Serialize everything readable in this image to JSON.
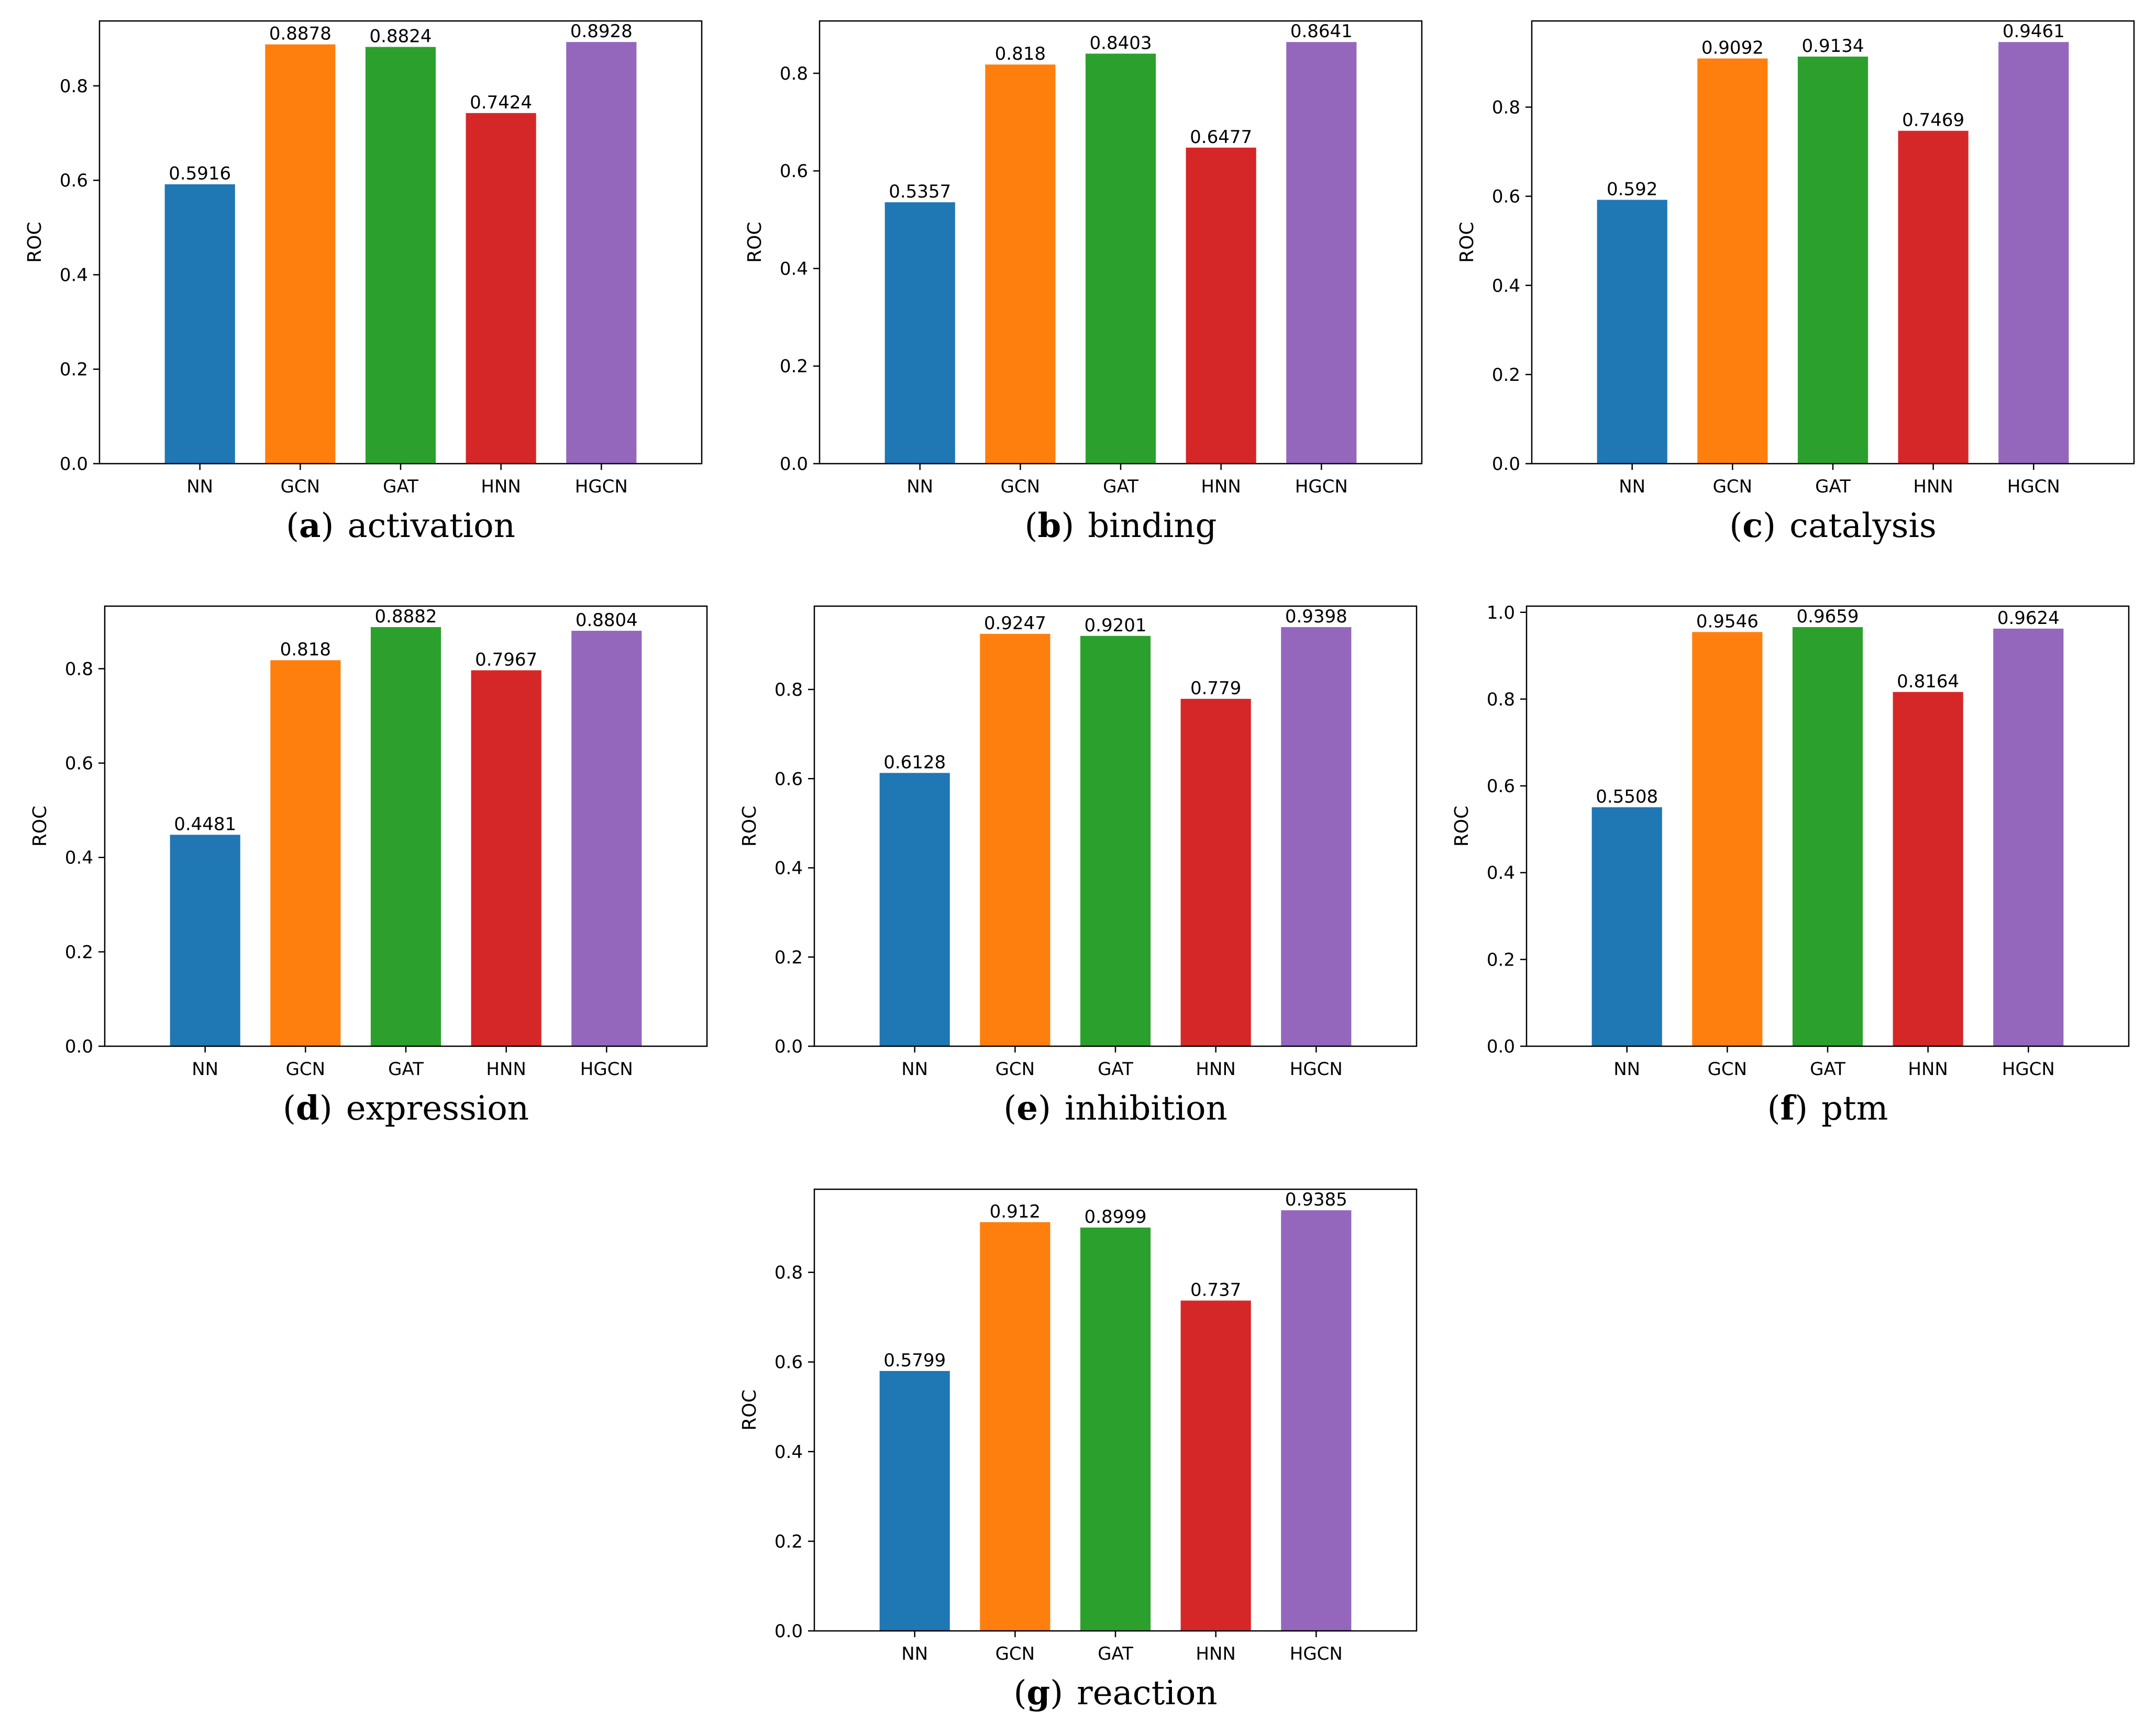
{
  "colors": {
    "NN": "#1f77b4",
    "GCN": "#ff7f0e",
    "GAT": "#2ca02c",
    "HNN": "#d62728",
    "HGCN": "#9467bd",
    "axis": "#000000"
  },
  "chart_data": [
    {
      "type": "bar",
      "panel": "a",
      "caption": "activation",
      "ylabel": "ROC",
      "categories": [
        "NN",
        "GCN",
        "GAT",
        "HNN",
        "HGCN"
      ],
      "values": [
        0.5916,
        0.8878,
        0.8824,
        0.7424,
        0.8928
      ],
      "value_labels": [
        "0.5916",
        "0.8878",
        "0.8824",
        "0.7424",
        "0.8928"
      ],
      "ylim": [
        0,
        0.9374
      ],
      "yticks": [
        0.0,
        0.2,
        0.4,
        0.6,
        0.8
      ],
      "ytick_labels": [
        "0.0",
        "0.2",
        "0.4",
        "0.6",
        "0.8"
      ],
      "grid": false,
      "legend": "none"
    },
    {
      "type": "bar",
      "panel": "b",
      "caption": "binding",
      "ylabel": "ROC",
      "categories": [
        "NN",
        "GCN",
        "GAT",
        "HNN",
        "HGCN"
      ],
      "values": [
        0.5357,
        0.818,
        0.8403,
        0.6477,
        0.8641
      ],
      "value_labels": [
        "0.5357",
        "0.818",
        "0.8403",
        "0.6477",
        "0.8641"
      ],
      "ylim": [
        0,
        0.9073
      ],
      "yticks": [
        0.0,
        0.2,
        0.4,
        0.6,
        0.8
      ],
      "ytick_labels": [
        "0.0",
        "0.2",
        "0.4",
        "0.6",
        "0.8"
      ],
      "grid": false,
      "legend": "none"
    },
    {
      "type": "bar",
      "panel": "c",
      "caption": "catalysis",
      "ylabel": "ROC",
      "categories": [
        "NN",
        "GCN",
        "GAT",
        "HNN",
        "HGCN"
      ],
      "values": [
        0.592,
        0.9092,
        0.9134,
        0.7469,
        0.9461
      ],
      "value_labels": [
        "0.592",
        "0.9092",
        "0.9134",
        "0.7469",
        "0.9461"
      ],
      "ylim": [
        0,
        0.9934
      ],
      "yticks": [
        0.0,
        0.2,
        0.4,
        0.6,
        0.8
      ],
      "ytick_labels": [
        "0.0",
        "0.2",
        "0.4",
        "0.6",
        "0.8"
      ],
      "grid": false,
      "legend": "none"
    },
    {
      "type": "bar",
      "panel": "d",
      "caption": "expression",
      "ylabel": "ROC",
      "categories": [
        "NN",
        "GCN",
        "GAT",
        "HNN",
        "HGCN"
      ],
      "values": [
        0.4481,
        0.818,
        0.8882,
        0.7967,
        0.8804
      ],
      "value_labels": [
        "0.4481",
        "0.818",
        "0.8882",
        "0.7967",
        "0.8804"
      ],
      "ylim": [
        0,
        0.9326
      ],
      "yticks": [
        0.0,
        0.2,
        0.4,
        0.6,
        0.8
      ],
      "ytick_labels": [
        "0.0",
        "0.2",
        "0.4",
        "0.6",
        "0.8"
      ],
      "grid": false,
      "legend": "none"
    },
    {
      "type": "bar",
      "panel": "e",
      "caption": "inhibition",
      "ylabel": "ROC",
      "categories": [
        "NN",
        "GCN",
        "GAT",
        "HNN",
        "HGCN"
      ],
      "values": [
        0.6128,
        0.9247,
        0.9201,
        0.779,
        0.9398
      ],
      "value_labels": [
        "0.6128",
        "0.9247",
        "0.9201",
        "0.779",
        "0.9398"
      ],
      "ylim": [
        0,
        0.9868
      ],
      "yticks": [
        0.0,
        0.2,
        0.4,
        0.6,
        0.8
      ],
      "ytick_labels": [
        "0.0",
        "0.2",
        "0.4",
        "0.6",
        "0.8"
      ],
      "grid": false,
      "legend": "none"
    },
    {
      "type": "bar",
      "panel": "f",
      "caption": "ptm",
      "ylabel": "ROC",
      "categories": [
        "NN",
        "GCN",
        "GAT",
        "HNN",
        "HGCN"
      ],
      "values": [
        0.5508,
        0.9546,
        0.9659,
        0.8164,
        0.9624
      ],
      "value_labels": [
        "0.5508",
        "0.9546",
        "0.9659",
        "0.8164",
        "0.9624"
      ],
      "ylim": [
        0,
        1.0142
      ],
      "yticks": [
        0.0,
        0.2,
        0.4,
        0.6,
        0.8,
        1.0
      ],
      "ytick_labels": [
        "0.0",
        "0.2",
        "0.4",
        "0.6",
        "0.8",
        "1.0"
      ],
      "grid": false,
      "legend": "none"
    },
    {
      "type": "bar",
      "panel": "g",
      "caption": "reaction",
      "ylabel": "ROC",
      "categories": [
        "NN",
        "GCN",
        "GAT",
        "HNN",
        "HGCN"
      ],
      "values": [
        0.5799,
        0.912,
        0.8999,
        0.737,
        0.9385
      ],
      "value_labels": [
        "0.5799",
        "0.912",
        "0.8999",
        "0.737",
        "0.9385"
      ],
      "ylim": [
        0,
        0.9854
      ],
      "yticks": [
        0.0,
        0.2,
        0.4,
        0.6,
        0.8
      ],
      "ytick_labels": [
        "0.0",
        "0.2",
        "0.4",
        "0.6",
        "0.8"
      ],
      "grid": false,
      "legend": "none"
    }
  ]
}
